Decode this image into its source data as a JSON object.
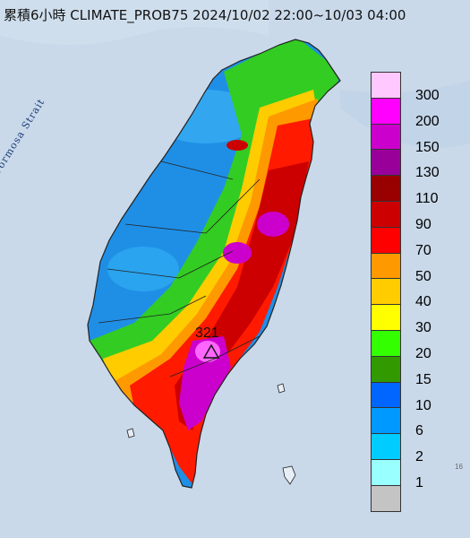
{
  "title": "累積6小時 CLIMATE_PROB75 2024/10/02 22:00~10/03 04:00",
  "map": {
    "strait_label": "Formosa Strait",
    "max_value_label": "321",
    "max_marker_icon": "triangle-icon",
    "corner_mark": "16"
  },
  "legend": {
    "items": [
      {
        "label": "300",
        "color": "#ffc8ff"
      },
      {
        "label": "200",
        "color": "#ff00ff"
      },
      {
        "label": "150",
        "color": "#cc00cc"
      },
      {
        "label": "130",
        "color": "#990099"
      },
      {
        "label": "110",
        "color": "#990000"
      },
      {
        "label": "90",
        "color": "#cc0000"
      },
      {
        "label": "70",
        "color": "#ff0000"
      },
      {
        "label": "50",
        "color": "#ff9900"
      },
      {
        "label": "40",
        "color": "#ffcc00"
      },
      {
        "label": "30",
        "color": "#ffff00"
      },
      {
        "label": "20",
        "color": "#33ff00"
      },
      {
        "label": "15",
        "color": "#339900"
      },
      {
        "label": "10",
        "color": "#0066ff"
      },
      {
        "label": "6",
        "color": "#0099ff"
      },
      {
        "label": "2",
        "color": "#00ccff"
      },
      {
        "label": "1",
        "color": "#99ffff"
      },
      {
        "label": "",
        "color": "#c4c4c4"
      }
    ]
  },
  "colors": {
    "sea": "#c9d9ea",
    "land_low": "#1f8fe6",
    "land_mid": "#33cc22",
    "land_high": "#ff1a00",
    "land_peak": "#cc00cc",
    "border": "#222222"
  }
}
